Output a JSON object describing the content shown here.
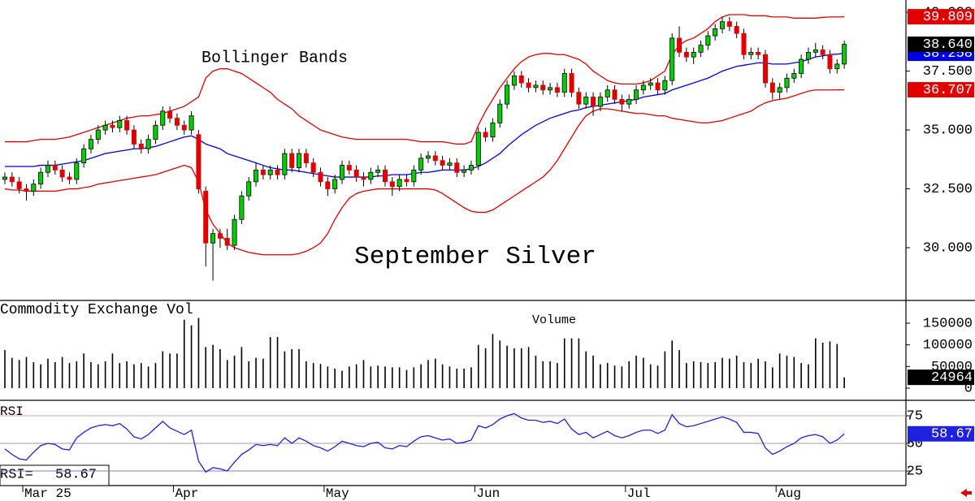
{
  "chart_data": [
    {
      "type": "candlestick",
      "title": "September Silver",
      "annotation": "Bollinger Bands",
      "categories": [
        null,
        null,
        null,
        "Mar 25",
        null,
        null,
        null,
        null,
        null,
        null,
        null,
        null,
        null,
        null,
        null,
        null,
        null,
        null,
        null,
        null,
        null,
        null,
        null,
        null,
        "Apr",
        null,
        null,
        null,
        null,
        null,
        null,
        null,
        null,
        null,
        null,
        null,
        null,
        null,
        null,
        null,
        null,
        null,
        null,
        null,
        null,
        "May",
        null,
        null,
        null,
        null,
        null,
        null,
        null,
        null,
        null,
        null,
        null,
        null,
        null,
        null,
        null,
        null,
        null,
        null,
        null,
        null,
        "Jun",
        null,
        null,
        null,
        null,
        null,
        null,
        null,
        null,
        null,
        null,
        null,
        null,
        null,
        null,
        null,
        null,
        null,
        null,
        null,
        null,
        "Jul",
        null,
        null,
        null,
        null,
        null,
        null,
        null,
        null,
        null,
        null,
        null,
        null,
        null,
        null,
        null,
        null,
        null,
        null,
        null,
        null,
        "Aug",
        null,
        null,
        null,
        null,
        null,
        null,
        null,
        null,
        null
      ],
      "open": [
        32.9,
        33.0,
        32.8,
        32.5,
        32.4,
        32.7,
        33.2,
        33.5,
        33.3,
        33.0,
        32.9,
        33.6,
        34.2,
        34.6,
        35.0,
        35.2,
        35.1,
        35.4,
        35.0,
        34.4,
        34.2,
        34.6,
        35.2,
        35.8,
        35.5,
        35.2,
        35.0,
        34.8,
        32.4,
        30.2,
        30.6,
        30.4,
        30.1,
        31.2,
        32.2,
        32.8,
        33.3,
        33.1,
        33.3,
        33.1,
        34.0,
        33.4,
        34.0,
        33.6,
        33.2,
        32.8,
        32.5,
        32.9,
        33.5,
        33.3,
        33.0,
        32.9,
        33.2,
        33.3,
        32.8,
        32.6,
        32.9,
        32.8,
        33.3,
        33.8,
        33.9,
        33.7,
        33.5,
        33.6,
        33.2,
        33.3,
        33.5,
        34.9,
        34.7,
        35.3,
        36.1,
        36.9,
        37.3,
        37.0,
        36.8,
        36.9,
        36.7,
        36.8,
        36.6,
        37.4,
        36.6,
        36.1,
        36.4,
        36.0,
        36.4,
        36.7,
        36.3,
        36.1,
        36.3,
        36.7,
        36.9,
        37.0,
        36.7,
        37.1,
        38.9,
        38.3,
        38.1,
        38.3,
        38.6,
        39.0,
        39.3,
        39.6,
        39.4,
        39.1,
        38.2,
        38.3,
        38.2,
        37.0,
        36.6,
        36.8,
        37.2,
        37.4,
        38.0,
        38.3,
        38.4,
        38.2,
        37.6,
        37.8
      ],
      "high": [
        33.2,
        33.2,
        33.0,
        32.7,
        32.9,
        33.4,
        33.7,
        33.7,
        33.5,
        33.2,
        33.8,
        34.4,
        34.8,
        35.2,
        35.4,
        35.4,
        35.6,
        35.6,
        35.2,
        34.6,
        34.8,
        35.4,
        36.0,
        36.0,
        35.7,
        35.4,
        35.8,
        35.0,
        32.6,
        30.8,
        30.8,
        30.8,
        31.4,
        32.4,
        33.0,
        33.6,
        33.5,
        33.5,
        33.5,
        34.2,
        34.2,
        34.2,
        34.2,
        33.8,
        33.4,
        33.0,
        33.1,
        33.7,
        33.7,
        33.5,
        33.2,
        33.4,
        33.5,
        33.5,
        33.0,
        33.1,
        33.1,
        33.5,
        34.0,
        34.1,
        34.1,
        33.9,
        33.8,
        33.8,
        33.5,
        33.7,
        35.1,
        35.1,
        35.5,
        36.3,
        37.1,
        37.5,
        37.5,
        37.2,
        37.1,
        37.1,
        37.0,
        37.0,
        37.6,
        37.6,
        36.8,
        36.6,
        36.6,
        36.6,
        36.9,
        36.9,
        36.5,
        36.5,
        36.9,
        37.1,
        37.2,
        37.2,
        37.3,
        39.1,
        39.4,
        38.5,
        38.5,
        38.8,
        39.2,
        39.5,
        39.8,
        39.8,
        39.6,
        39.3,
        38.5,
        38.5,
        38.4,
        37.2,
        37.0,
        37.4,
        37.6,
        38.2,
        38.5,
        38.7,
        38.6,
        38.4,
        38.0,
        38.8
      ],
      "low": [
        32.7,
        32.6,
        32.3,
        32.0,
        32.2,
        32.5,
        33.0,
        33.1,
        32.8,
        32.7,
        32.7,
        33.4,
        34.0,
        34.4,
        34.8,
        34.9,
        34.9,
        34.8,
        34.2,
        34.0,
        34.0,
        34.4,
        35.0,
        35.3,
        35.0,
        34.8,
        34.8,
        32.3,
        29.2,
        28.6,
        30.0,
        29.9,
        29.9,
        31.0,
        32.0,
        32.6,
        32.9,
        32.9,
        32.9,
        32.9,
        33.2,
        33.2,
        33.4,
        33.0,
        32.6,
        32.2,
        32.3,
        32.7,
        33.1,
        32.8,
        32.6,
        32.7,
        33.0,
        32.6,
        32.2,
        32.4,
        32.6,
        32.6,
        33.1,
        33.6,
        33.5,
        33.3,
        33.3,
        33.0,
        33.0,
        33.1,
        33.3,
        34.5,
        34.5,
        35.1,
        35.9,
        36.7,
        36.8,
        36.6,
        36.6,
        36.5,
        36.5,
        36.4,
        36.4,
        36.4,
        35.9,
        35.9,
        35.6,
        35.8,
        36.2,
        36.1,
        35.8,
        35.9,
        36.1,
        36.5,
        36.7,
        36.5,
        36.5,
        36.9,
        38.1,
        37.9,
        37.8,
        38.1,
        38.4,
        38.8,
        39.1,
        39.2,
        38.9,
        38.0,
        38.0,
        38.0,
        36.8,
        36.3,
        36.3,
        36.6,
        37.0,
        37.2,
        37.8,
        38.1,
        38.0,
        37.4,
        37.4,
        37.6
      ],
      "close": [
        33.0,
        32.8,
        32.5,
        32.4,
        32.7,
        33.2,
        33.5,
        33.3,
        33.0,
        32.9,
        33.6,
        34.2,
        34.6,
        35.0,
        35.2,
        35.1,
        35.4,
        35.0,
        34.4,
        34.2,
        34.6,
        35.2,
        35.8,
        35.5,
        35.2,
        35.0,
        35.6,
        32.5,
        30.2,
        30.6,
        30.4,
        30.1,
        31.2,
        32.2,
        32.8,
        33.3,
        33.1,
        33.3,
        33.1,
        34.0,
        33.4,
        34.0,
        33.6,
        33.2,
        32.8,
        32.5,
        32.9,
        33.5,
        33.3,
        33.0,
        32.9,
        33.2,
        33.3,
        32.8,
        32.6,
        32.9,
        32.8,
        33.3,
        33.8,
        33.9,
        33.7,
        33.5,
        33.6,
        33.2,
        33.3,
        33.5,
        34.9,
        34.7,
        35.3,
        36.1,
        36.9,
        37.3,
        37.0,
        36.8,
        36.9,
        36.7,
        36.8,
        36.6,
        37.4,
        36.6,
        36.1,
        36.4,
        36.0,
        36.4,
        36.7,
        36.3,
        36.1,
        36.3,
        36.7,
        36.9,
        37.0,
        36.7,
        37.1,
        38.9,
        38.3,
        38.1,
        38.3,
        38.6,
        39.0,
        39.3,
        39.6,
        39.4,
        39.1,
        38.2,
        38.3,
        38.2,
        37.0,
        36.6,
        36.8,
        37.2,
        37.4,
        38.0,
        38.3,
        38.4,
        38.2,
        37.6,
        37.8,
        38.64
      ],
      "close_label": "38.640",
      "color_up": "#00d000",
      "color_down": "#e00000",
      "bands": {
        "color_outer": "#e00000",
        "color_middle": "#0000e0",
        "upper": [
          34.5,
          34.5,
          34.5,
          34.5,
          34.55,
          34.6,
          34.6,
          34.6,
          34.65,
          34.7,
          34.8,
          34.9,
          35.0,
          35.1,
          35.2,
          35.3,
          35.4,
          35.5,
          35.55,
          35.6,
          35.6,
          35.65,
          35.7,
          35.8,
          35.9,
          36.0,
          36.2,
          36.4,
          37.2,
          37.5,
          37.6,
          37.6,
          37.5,
          37.4,
          37.2,
          37.0,
          36.8,
          36.6,
          36.3,
          36.1,
          35.9,
          35.6,
          35.4,
          35.2,
          35.0,
          34.9,
          34.8,
          34.7,
          34.65,
          34.6,
          34.6,
          34.6,
          34.6,
          34.6,
          34.6,
          34.6,
          34.6,
          34.55,
          34.5,
          34.5,
          34.5,
          34.5,
          34.45,
          34.4,
          34.4,
          34.5,
          35.2,
          35.8,
          36.3,
          36.8,
          37.2,
          37.6,
          37.9,
          38.1,
          38.2,
          38.25,
          38.25,
          38.2,
          38.2,
          38.1,
          38.0,
          37.8,
          37.5,
          37.3,
          37.1,
          37.0,
          36.95,
          36.95,
          36.95,
          37.0,
          37.1,
          37.3,
          37.5,
          38.2,
          38.6,
          38.8,
          38.9,
          39.1,
          39.3,
          39.6,
          39.8,
          39.9,
          39.9,
          39.9,
          39.85,
          39.85,
          39.85,
          39.8,
          39.8,
          39.8,
          39.75,
          39.75,
          39.75,
          39.75,
          39.78,
          39.8,
          39.8,
          39.809
        ],
        "middle": [
          33.45,
          33.45,
          33.45,
          33.45,
          33.45,
          33.5,
          33.5,
          33.5,
          33.55,
          33.6,
          33.65,
          33.7,
          33.8,
          33.9,
          34.0,
          34.05,
          34.1,
          34.15,
          34.2,
          34.2,
          34.25,
          34.3,
          34.4,
          34.5,
          34.6,
          34.7,
          34.75,
          34.6,
          34.4,
          34.3,
          34.2,
          34.0,
          33.9,
          33.8,
          33.7,
          33.6,
          33.5,
          33.4,
          33.35,
          33.3,
          33.3,
          33.25,
          33.2,
          33.15,
          33.1,
          33.05,
          33.0,
          33.0,
          33.0,
          33.0,
          33.0,
          33.0,
          33.05,
          33.05,
          33.1,
          33.1,
          33.1,
          33.15,
          33.2,
          33.2,
          33.25,
          33.3,
          33.3,
          33.3,
          33.3,
          33.35,
          33.45,
          33.6,
          33.8,
          34.0,
          34.3,
          34.55,
          34.8,
          35.0,
          35.2,
          35.35,
          35.5,
          35.6,
          35.7,
          35.8,
          35.85,
          35.95,
          36.0,
          36.05,
          36.1,
          36.15,
          36.2,
          36.25,
          36.3,
          36.4,
          36.45,
          36.5,
          36.55,
          36.7,
          36.8,
          36.9,
          37.0,
          37.1,
          37.2,
          37.35,
          37.5,
          37.6,
          37.7,
          37.75,
          37.8,
          37.85,
          37.85,
          37.8,
          37.8,
          37.8,
          37.85,
          37.9,
          38.0,
          38.1,
          38.15,
          38.2,
          38.22,
          38.258
        ],
        "lower": [
          32.5,
          32.45,
          32.45,
          32.4,
          32.4,
          32.4,
          32.4,
          32.4,
          32.45,
          32.5,
          32.5,
          32.55,
          32.6,
          32.7,
          32.75,
          32.8,
          32.85,
          32.9,
          32.95,
          33.0,
          33.05,
          33.1,
          33.2,
          33.3,
          33.4,
          33.5,
          33.4,
          32.8,
          31.6,
          31.0,
          30.6,
          30.2,
          30.0,
          29.9,
          29.8,
          29.75,
          29.7,
          29.7,
          29.7,
          29.7,
          29.7,
          29.75,
          29.85,
          30.0,
          30.2,
          30.6,
          31.2,
          31.7,
          32.1,
          32.3,
          32.4,
          32.45,
          32.5,
          32.5,
          32.5,
          32.5,
          32.5,
          32.5,
          32.5,
          32.5,
          32.45,
          32.3,
          32.1,
          31.9,
          31.7,
          31.55,
          31.5,
          31.5,
          31.6,
          31.8,
          32.0,
          32.2,
          32.4,
          32.6,
          32.8,
          33.0,
          33.3,
          33.7,
          34.2,
          34.7,
          35.2,
          35.6,
          35.8,
          35.9,
          35.9,
          35.85,
          35.8,
          35.75,
          35.7,
          35.7,
          35.65,
          35.6,
          35.6,
          35.5,
          35.45,
          35.4,
          35.35,
          35.3,
          35.3,
          35.35,
          35.4,
          35.5,
          35.6,
          35.7,
          35.8,
          36.0,
          36.15,
          36.25,
          36.3,
          36.35,
          36.45,
          36.55,
          36.65,
          36.7,
          36.7,
          36.7,
          36.7,
          36.707
        ],
        "upper_label": "39.809",
        "middle_label": "38.258",
        "lower_label": "36.707"
      },
      "ylim": [
        27.76,
        40.52
      ],
      "yticks": [
        {
          "value": 40,
          "label": "40.000"
        },
        {
          "value": 37.5,
          "label": "37.500"
        },
        {
          "value": 35,
          "label": "35.000"
        },
        {
          "value": 32.5,
          "label": "32.500"
        },
        {
          "value": 30,
          "label": "30.000"
        }
      ]
    },
    {
      "type": "bar",
      "title": "Commodity Exchange Vol",
      "subtitle": "Volume",
      "color": "#000000",
      "values": [
        88000,
        70000,
        65000,
        72000,
        60000,
        55000,
        68000,
        60000,
        72000,
        58000,
        62000,
        80000,
        60000,
        55000,
        62000,
        80000,
        58000,
        62000,
        55000,
        58000,
        50000,
        58000,
        85000,
        80000,
        80000,
        158000,
        145000,
        162000,
        95000,
        100000,
        90000,
        65000,
        75000,
        95000,
        62000,
        70000,
        68000,
        118000,
        118000,
        85000,
        90000,
        90000,
        62000,
        58000,
        56000,
        50000,
        45000,
        40000,
        50000,
        55000,
        65000,
        50000,
        52000,
        50000,
        48000,
        48000,
        42000,
        48000,
        55000,
        65000,
        68000,
        55000,
        50000,
        45000,
        45000,
        48000,
        100000,
        92000,
        125000,
        110000,
        98000,
        92000,
        92000,
        95000,
        75000,
        62000,
        62000,
        58000,
        115000,
        115000,
        115000,
        85000,
        75000,
        55000,
        58000,
        52000,
        50000,
        62000,
        75000,
        70000,
        55000,
        52000,
        85000,
        110000,
        88000,
        58000,
        62000,
        60000,
        58000,
        60000,
        70000,
        68000,
        75000,
        60000,
        58000,
        68000,
        62000,
        48000,
        80000,
        75000,
        72000,
        58000,
        55000,
        115000,
        105000,
        108000,
        102000,
        24964
      ],
      "ylim": [
        -28125,
        202500
      ],
      "yticks": [
        150000,
        100000,
        50000,
        0
      ]
    },
    {
      "type": "line",
      "title": "RSI",
      "readout": "RSI=",
      "color": "#2020e0",
      "values": [
        45,
        40,
        36,
        35,
        42,
        48,
        50,
        49,
        45,
        44,
        55,
        60,
        64,
        66,
        67,
        66,
        68,
        63,
        56,
        54,
        58,
        64,
        70,
        64,
        61,
        58,
        62,
        34,
        24,
        28,
        27,
        25,
        33,
        40,
        44,
        49,
        48,
        49,
        48,
        55,
        50,
        55,
        52,
        48,
        46,
        43,
        47,
        52,
        50,
        48,
        47,
        50,
        51,
        46,
        45,
        48,
        47,
        52,
        56,
        57,
        55,
        53,
        54,
        50,
        51,
        53,
        66,
        64,
        67,
        72,
        75,
        77,
        73,
        71,
        71,
        69,
        70,
        68,
        72,
        63,
        58,
        60,
        55,
        58,
        61,
        57,
        55,
        57,
        60,
        62,
        62,
        59,
        62,
        76,
        68,
        65,
        66,
        68,
        70,
        72,
        74,
        72,
        69,
        60,
        60,
        59,
        46,
        40,
        43,
        47,
        50,
        55,
        57,
        58,
        56,
        50,
        53,
        58.67
      ],
      "ylim": [
        11.8,
        89
      ],
      "yticks": [
        75,
        50,
        25
      ],
      "grid_colors": [
        "#f0a0a0",
        "#a0a0a0",
        "#8080c0"
      ]
    }
  ]
}
